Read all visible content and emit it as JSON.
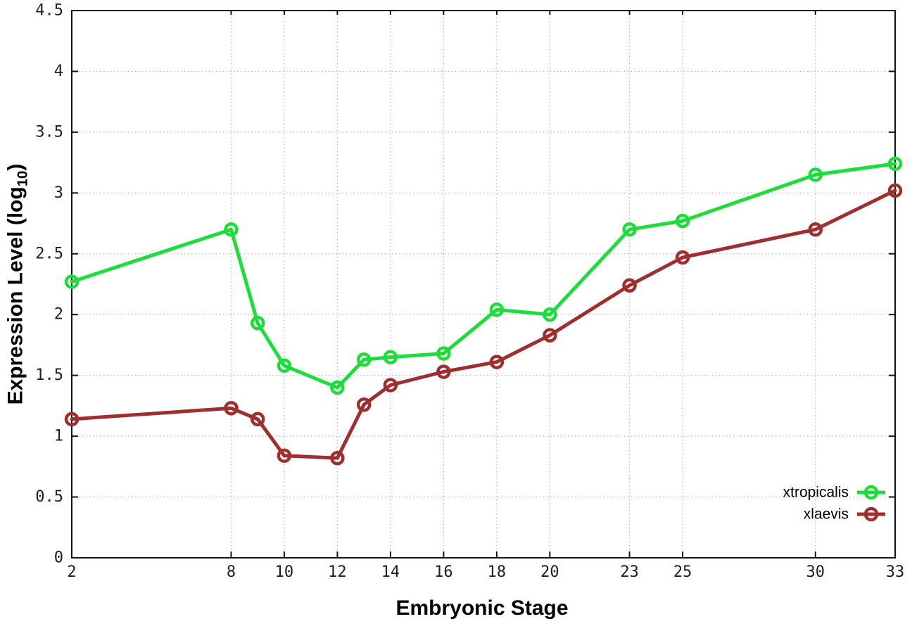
{
  "chart_data": {
    "type": "line",
    "title": "",
    "xlabel": "Embryonic Stage",
    "ylabel": {
      "prefix": "Expression Level (log",
      "subscript": "10",
      "suffix": ")"
    },
    "x": [
      2,
      8,
      9,
      10,
      12,
      13,
      14,
      16,
      18,
      20,
      23,
      25,
      30,
      33
    ],
    "series": [
      {
        "name": "xtropicalis",
        "color": "#1cdd3a",
        "values": [
          2.27,
          2.7,
          1.93,
          1.58,
          1.4,
          1.63,
          1.65,
          1.68,
          2.04,
          2.0,
          2.7,
          2.77,
          3.15,
          3.24
        ]
      },
      {
        "name": "xlaevis",
        "color": "#a02e2e",
        "values": [
          1.14,
          1.23,
          1.14,
          0.84,
          0.82,
          1.26,
          1.42,
          1.53,
          1.61,
          1.83,
          2.24,
          2.47,
          2.7,
          3.02
        ]
      }
    ],
    "xlim": [
      2,
      33
    ],
    "ylim": [
      0,
      4.5
    ],
    "xticks": [
      2,
      8,
      10,
      12,
      14,
      16,
      18,
      20,
      23,
      25,
      30,
      33
    ],
    "yticks": [
      0,
      0.5,
      1,
      1.5,
      2,
      2.5,
      3,
      3.5,
      4,
      4.5
    ],
    "grid": true,
    "legend_position": "bottom-right",
    "marker": "open-circle",
    "colors": {
      "axis": "#141414",
      "grid": "#b4b4b4",
      "tick_label": "#202020"
    }
  }
}
